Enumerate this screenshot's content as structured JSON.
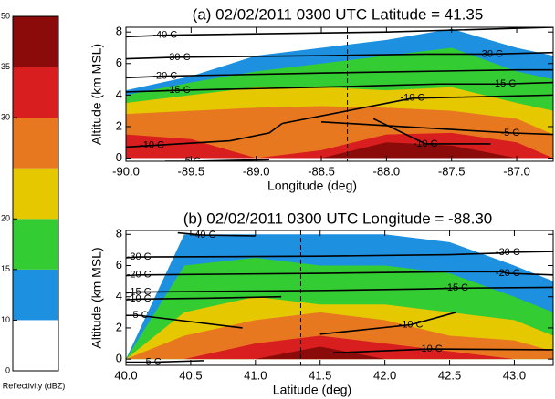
{
  "chart_data": [
    {
      "type": "colorbar",
      "label": "Reflectivity (dBZ)",
      "bounds": [
        0,
        10,
        15,
        20,
        25,
        30,
        35,
        50
      ],
      "colors": [
        "#ffffff",
        "#1e90e0",
        "#33cc33",
        "#e6c800",
        "#e87820",
        "#d81e1e",
        "#8b0a0a"
      ],
      "ticks": [
        0,
        10,
        15,
        20,
        30,
        35,
        50
      ]
    },
    {
      "type": "cross_section",
      "title": "(a) 02/02/2011 0300 UTC Latitude = 41.35",
      "xlabel": "Longitude (deg)",
      "ylabel": "Altitude (km MSL)",
      "xlim": [
        -90.0,
        -86.72
      ],
      "ylim": [
        -0.2,
        8.3
      ],
      "xticks": [
        {
          "value": -90,
          "label": "-90.0"
        },
        -89.5,
        {
          "value": -89,
          "label": "-89.0"
        },
        -88.5,
        {
          "value": -88,
          "label": "-88.0"
        },
        -87.5,
        {
          "value": -87,
          "label": "-87.0"
        }
      ],
      "yticks": [
        0,
        2,
        4,
        6,
        8
      ],
      "cross_line": -88.3,
      "field": {
        "x": [
          -90,
          -89.5,
          -89,
          -88.5,
          -88,
          -87.5,
          -87,
          -86.72
        ],
        "layers": [
          {
            "dbz": 10,
            "values": [
              4.3,
              5.2,
              6.5,
              7.0,
              7.5,
              8.2,
              7.0,
              6.5
            ]
          },
          {
            "dbz": 15,
            "values": [
              4.0,
              4.8,
              5.5,
              6.0,
              6.5,
              7.0,
              5.5,
              5.0
            ]
          },
          {
            "dbz": 20,
            "values": [
              3.5,
              4.0,
              4.5,
              4.5,
              4.3,
              4.5,
              3.5,
              3.0
            ]
          },
          {
            "dbz": 25,
            "values": [
              2.8,
              3.0,
              3.2,
              3.3,
              3.2,
              3.0,
              2.5,
              1.5
            ]
          },
          {
            "dbz": 30,
            "values": [
              1.5,
              1.2,
              0,
              0.5,
              1.5,
              1.6,
              1.0,
              0
            ]
          },
          {
            "dbz": 35,
            "values": [
              0,
              0,
              0,
              0,
              1.0,
              0.8,
              0,
              0
            ]
          }
        ]
      },
      "contours": [
        {
          "label": "-40 C",
          "x": [
            -90,
            -89.7,
            -88.0,
            -86.72
          ],
          "y": [
            7.7,
            7.8,
            8.0,
            8.3
          ]
        },
        {
          "label": "-30 C",
          "x": [
            -90,
            -89.6,
            -88.5,
            -87.7
          ],
          "y": [
            6.3,
            6.4,
            6.5,
            6.6
          ]
        },
        {
          "label": "-30 C",
          "x": [
            -87.7,
            -87.2,
            -86.72
          ],
          "y": [
            6.6,
            6.6,
            6.7
          ]
        },
        {
          "label": "-20 C",
          "x": [
            -90,
            -89.7,
            -88.5,
            -87.0,
            -86.72
          ],
          "y": [
            5.1,
            5.2,
            5.4,
            5.6,
            5.6
          ]
        },
        {
          "label": "-15 C",
          "x": [
            -90,
            -89.6,
            -88.5,
            -87.6
          ],
          "y": [
            4.2,
            4.3,
            4.5,
            4.7
          ]
        },
        {
          "label": "-15 C",
          "x": [
            -87.6,
            -87.1,
            -86.72
          ],
          "y": [
            4.7,
            4.7,
            4.8
          ]
        },
        {
          "label": "-10 C",
          "x": [
            -90,
            -89.8,
            -89.2,
            -88.9,
            -88.8
          ],
          "y": [
            0.7,
            0.8,
            1.1,
            1.6,
            2.2
          ]
        },
        {
          "label": "-10 C",
          "x": [
            -88.8,
            -87.8,
            -86.72
          ],
          "y": [
            2.2,
            3.8,
            4.0
          ]
        },
        {
          "label": "-10 C",
          "x": [
            -88.1,
            -87.7,
            -87.2
          ],
          "y": [
            2.5,
            0.9,
            0.9
          ]
        },
        {
          "label": "-5 C",
          "x": [
            -88.5,
            -87.05,
            -86.72
          ],
          "y": [
            2.3,
            1.6,
            1.5
          ]
        },
        {
          "label": "-5 C",
          "x": [
            -89.7,
            -89.5,
            -88.9
          ],
          "y": [
            -0.2,
            -0.2,
            -0.1
          ]
        }
      ]
    },
    {
      "type": "cross_section",
      "title": "(b) 02/02/2011 0300 UTC Longitude = -88.30",
      "xlabel": "Latitude (deg)",
      "ylabel": "Altitude (km MSL)",
      "xlim": [
        40.0,
        43.3
      ],
      "ylim": [
        -0.4,
        8.25
      ],
      "xticks": [
        {
          "value": 40,
          "label": "40.0"
        },
        40.5,
        {
          "value": 41,
          "label": "41.0"
        },
        41.5,
        {
          "value": 42,
          "label": "42.0"
        },
        42.5,
        {
          "value": 43,
          "label": "43.0"
        }
      ],
      "yticks": [
        0,
        2,
        4,
        6,
        8
      ],
      "cross_line": 41.35,
      "field": {
        "x": [
          40,
          40.45,
          41,
          41.5,
          42,
          42.5,
          43,
          43.3
        ],
        "layers": [
          {
            "dbz": 10,
            "values": [
              0,
              8,
              8,
              8,
              8,
              7.5,
              6,
              5
            ]
          },
          {
            "dbz": 15,
            "values": [
              0,
              6,
              6.5,
              6,
              6,
              5.5,
              4,
              3
            ]
          },
          {
            "dbz": 20,
            "values": [
              0,
              3,
              4,
              3.5,
              3.5,
              3,
              2.5,
              1.5
            ]
          },
          {
            "dbz": 25,
            "values": [
              0,
              1.5,
              2.5,
              3,
              2.5,
              1.5,
              1.2,
              0.5
            ]
          },
          {
            "dbz": 30,
            "values": [
              0,
              0,
              1,
              1.5,
              1,
              0.5,
              0,
              0
            ]
          },
          {
            "dbz": 35,
            "values": [
              0,
              0,
              0,
              0.8,
              0,
              0,
              0,
              0
            ]
          }
        ]
      },
      "contours": [
        {
          "label": "-40 C",
          "x": [
            40.4,
            40.6,
            41.0
          ],
          "y": [
            8.1,
            7.95,
            7.9
          ]
        },
        {
          "label": "-30 C",
          "x": [
            40.0,
            40.1,
            41.5,
            42.5,
            42.9
          ],
          "y": [
            6.5,
            6.55,
            6.6,
            6.7,
            6.8
          ]
        },
        {
          "label": "-30 C",
          "x": [
            42.9,
            42.95,
            43.3
          ],
          "y": [
            6.8,
            6.85,
            6.9
          ]
        },
        {
          "label": "-20 C",
          "x": [
            40.0,
            40.1,
            41.5,
            42.5,
            42.9
          ],
          "y": [
            5.35,
            5.4,
            5.5,
            5.6,
            5.6
          ]
        },
        {
          "label": "-20 C",
          "x": [
            42.9,
            42.95,
            43.3
          ],
          "y": [
            5.6,
            5.5,
            5.4
          ]
        },
        {
          "label": "-15 C",
          "x": [
            40.0,
            40.1,
            41.5,
            42.3
          ],
          "y": [
            4.25,
            4.3,
            4.4,
            4.5
          ]
        },
        {
          "label": "-15 C",
          "x": [
            42.3,
            42.55,
            43.3
          ],
          "y": [
            4.5,
            4.55,
            4.6
          ]
        },
        {
          "label": "-10 C",
          "x": [
            40.0,
            40.1,
            40.6,
            41.2
          ],
          "y": [
            3.8,
            3.85,
            3.9,
            4.0
          ]
        },
        {
          "label": "-10 C",
          "x": [
            41.5,
            42.2,
            42.55
          ],
          "y": [
            1.6,
            2.2,
            3.0
          ]
        },
        {
          "label": "-10 C",
          "x": [
            41.6,
            42.35,
            43.3
          ],
          "y": [
            0.4,
            0.65,
            0.6
          ]
        },
        {
          "label": "-5 C",
          "x": [
            40.0,
            40.1,
            40.4,
            40.9
          ],
          "y": [
            2.8,
            2.8,
            2.5,
            2.0
          ]
        },
        {
          "label": "-5 C",
          "x": [
            40.0,
            40.2,
            40.6
          ],
          "y": [
            -0.2,
            -0.2,
            -0.1
          ]
        }
      ]
    }
  ]
}
